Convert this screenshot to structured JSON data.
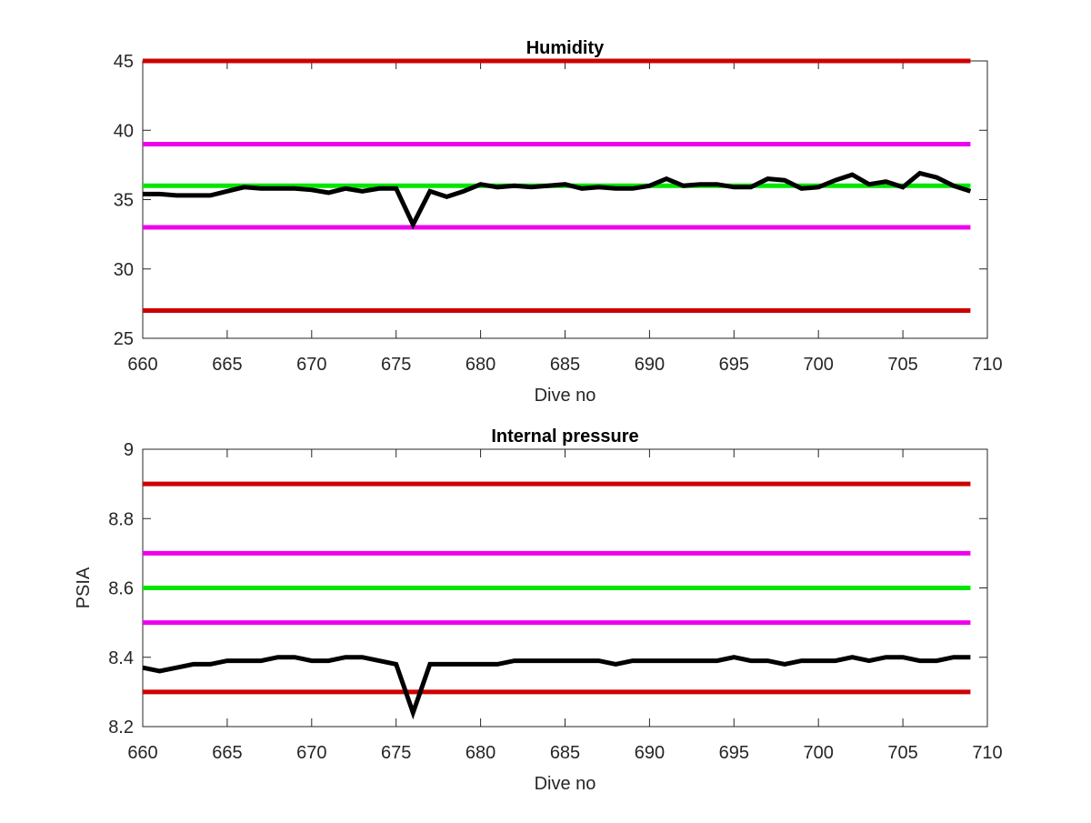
{
  "chart_data": [
    {
      "type": "line",
      "title": "Humidity",
      "xlabel": "Dive no",
      "ylabel": "",
      "xlim": [
        660,
        710
      ],
      "ylim": [
        25,
        45
      ],
      "x_ticks": [
        "660",
        "665",
        "670",
        "675",
        "680",
        "685",
        "690",
        "695",
        "700",
        "705",
        "710"
      ],
      "y_ticks": [
        "25",
        "30",
        "35",
        "40",
        "45"
      ],
      "grid": false,
      "reference_lines": [
        {
          "value": 45,
          "color": "#cc0000"
        },
        {
          "value": 39,
          "color": "#ee00ee"
        },
        {
          "value": 36,
          "color": "#00e600"
        },
        {
          "value": 33,
          "color": "#ee00ee"
        },
        {
          "value": 27,
          "color": "#cc0000"
        }
      ],
      "series": [
        {
          "color": "#000000",
          "x": [
            660,
            661,
            662,
            663,
            664,
            665,
            666,
            667,
            668,
            669,
            670,
            671,
            672,
            673,
            674,
            675,
            676,
            677,
            678,
            679,
            680,
            681,
            682,
            683,
            684,
            685,
            686,
            687,
            688,
            689,
            690,
            691,
            692,
            693,
            694,
            695,
            696,
            697,
            698,
            699,
            700,
            701,
            702,
            703,
            704,
            705,
            706,
            707,
            708,
            709
          ],
          "values": [
            35.4,
            35.4,
            35.3,
            35.3,
            35.3,
            35.6,
            35.9,
            35.8,
            35.8,
            35.8,
            35.7,
            35.5,
            35.8,
            35.6,
            35.8,
            35.8,
            33.2,
            35.6,
            35.2,
            35.6,
            36.1,
            35.9,
            36.0,
            35.9,
            36.0,
            36.1,
            35.8,
            35.9,
            35.8,
            35.8,
            36.0,
            36.5,
            36.0,
            36.1,
            36.1,
            35.9,
            35.9,
            36.5,
            36.4,
            35.8,
            35.9,
            36.4,
            36.8,
            36.1,
            36.3,
            35.9,
            36.9,
            36.6,
            36.0,
            35.6
          ]
        }
      ]
    },
    {
      "type": "line",
      "title": "Internal pressure",
      "xlabel": "Dive no",
      "ylabel": "PSIA",
      "xlim": [
        660,
        710
      ],
      "ylim": [
        8.2,
        9.0
      ],
      "x_ticks": [
        "660",
        "665",
        "670",
        "675",
        "680",
        "685",
        "690",
        "695",
        "700",
        "705",
        "710"
      ],
      "y_ticks": [
        "8.2",
        "8.4",
        "8.6",
        "8.8",
        "9"
      ],
      "grid": false,
      "reference_lines": [
        {
          "value": 8.9,
          "color": "#cc0000"
        },
        {
          "value": 8.7,
          "color": "#ee00ee"
        },
        {
          "value": 8.6,
          "color": "#00e600"
        },
        {
          "value": 8.5,
          "color": "#ee00ee"
        },
        {
          "value": 8.3,
          "color": "#cc0000"
        }
      ],
      "series": [
        {
          "color": "#000000",
          "x": [
            660,
            661,
            662,
            663,
            664,
            665,
            666,
            667,
            668,
            669,
            670,
            671,
            672,
            673,
            674,
            675,
            676,
            677,
            678,
            679,
            680,
            681,
            682,
            683,
            684,
            685,
            686,
            687,
            688,
            689,
            690,
            691,
            692,
            693,
            694,
            695,
            696,
            697,
            698,
            699,
            700,
            701,
            702,
            703,
            704,
            705,
            706,
            707,
            708,
            709
          ],
          "values": [
            8.37,
            8.36,
            8.37,
            8.38,
            8.38,
            8.39,
            8.39,
            8.39,
            8.4,
            8.4,
            8.39,
            8.39,
            8.4,
            8.4,
            8.39,
            8.38,
            8.24,
            8.38,
            8.38,
            8.38,
            8.38,
            8.38,
            8.39,
            8.39,
            8.39,
            8.39,
            8.39,
            8.39,
            8.38,
            8.39,
            8.39,
            8.39,
            8.39,
            8.39,
            8.39,
            8.4,
            8.39,
            8.39,
            8.38,
            8.39,
            8.39,
            8.39,
            8.4,
            8.39,
            8.4,
            8.4,
            8.39,
            8.39,
            8.4,
            8.4
          ]
        }
      ]
    }
  ]
}
